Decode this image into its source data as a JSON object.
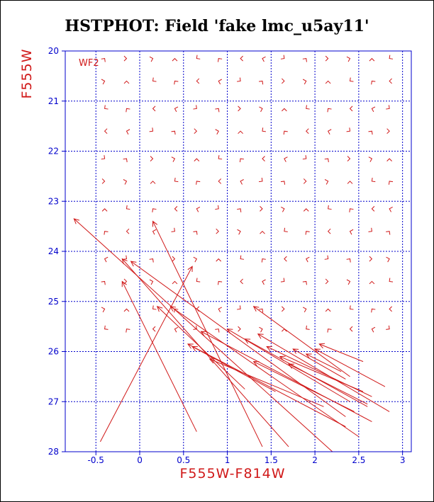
{
  "chart_data": {
    "type": "scatter",
    "title": "HSTPHOT: Field 'fake lmc_u5ay11'",
    "xlabel": "F555W-F814W",
    "ylabel": "F555W",
    "annotation": "WF2",
    "xlim": [
      -0.85,
      3.1
    ],
    "ylim": [
      28,
      20
    ],
    "y_inverted": true,
    "grid": true,
    "x_ticks": [
      -0.5,
      0,
      0.5,
      1,
      1.5,
      2,
      2.5,
      3
    ],
    "x_tick_labels": [
      "-0.5",
      "0",
      "0.5",
      "1",
      "1.5",
      "2",
      "2.5",
      "3"
    ],
    "y_ticks": [
      20,
      21,
      22,
      23,
      24,
      25,
      26,
      27,
      28
    ],
    "y_tick_labels": [
      "20",
      "21",
      "22",
      "23",
      "24",
      "25",
      "26",
      "27",
      "28"
    ],
    "colors": {
      "data": "#d01818",
      "axes": "#0000cc",
      "title": "#000000",
      "labels": "#d01818"
    },
    "grid_x": [
      -0.4,
      -0.15,
      0.15,
      0.4,
      0.65,
      0.9,
      1.15,
      1.4,
      1.65,
      1.9,
      2.15,
      2.4,
      2.65,
      2.85
    ],
    "grid_y": [
      20.15,
      20.6,
      21.15,
      21.6,
      22.15,
      22.6,
      23.15,
      23.6,
      24.15,
      24.6,
      25.15,
      25.55
    ],
    "long_vectors": [
      {
        "x0": -0.45,
        "y0": 27.8,
        "x1": 0.6,
        "y1": 24.3
      },
      {
        "x0": 0.65,
        "y0": 27.6,
        "x1": -0.2,
        "y1": 24.6
      },
      {
        "x0": 1.4,
        "y0": 27.9,
        "x1": 0.15,
        "y1": 23.4
      },
      {
        "x0": 2.2,
        "y0": 28.0,
        "x1": -0.75,
        "y1": 23.35
      },
      {
        "x0": 1.7,
        "y0": 27.9,
        "x1": -0.2,
        "y1": 24.15
      },
      {
        "x0": 2.35,
        "y0": 27.3,
        "x1": -0.1,
        "y1": 24.2
      },
      {
        "x0": 2.5,
        "y0": 27.7,
        "x1": 0.35,
        "y1": 25.1
      },
      {
        "x0": 2.4,
        "y0": 27.0,
        "x1": 1.0,
        "y1": 25.55
      },
      {
        "x0": 2.65,
        "y0": 27.4,
        "x1": 0.7,
        "y1": 25.6
      },
      {
        "x0": 2.35,
        "y0": 27.5,
        "x1": 0.55,
        "y1": 25.85
      },
      {
        "x0": 2.1,
        "y0": 27.1,
        "x1": 0.8,
        "y1": 26.15
      },
      {
        "x0": 2.45,
        "y0": 27.2,
        "x1": 1.3,
        "y1": 26.2
      },
      {
        "x0": 2.6,
        "y0": 27.1,
        "x1": 1.2,
        "y1": 25.75
      },
      {
        "x0": 2.85,
        "y0": 27.2,
        "x1": 1.35,
        "y1": 25.65
      },
      {
        "x0": 2.65,
        "y0": 26.9,
        "x1": 1.45,
        "y1": 25.9
      },
      {
        "x0": 2.55,
        "y0": 26.8,
        "x1": 1.6,
        "y1": 26.1
      },
      {
        "x0": 2.6,
        "y0": 27.05,
        "x1": 1.7,
        "y1": 26.25
      },
      {
        "x0": 2.35,
        "y0": 26.55,
        "x1": 1.75,
        "y1": 25.95
      },
      {
        "x0": 2.3,
        "y0": 26.4,
        "x1": 1.9,
        "y1": 26.05
      },
      {
        "x0": 2.8,
        "y0": 26.7,
        "x1": 2.0,
        "y1": 25.95
      },
      {
        "x0": 2.55,
        "y0": 26.2,
        "x1": 2.05,
        "y1": 25.85
      },
      {
        "x0": 2.4,
        "y0": 26.5,
        "x1": 1.3,
        "y1": 25.1
      },
      {
        "x0": 1.55,
        "y0": 26.8,
        "x1": 0.6,
        "y1": 25.9
      },
      {
        "x0": 1.2,
        "y0": 26.75,
        "x1": 0.2,
        "y1": 25.1
      }
    ]
  }
}
